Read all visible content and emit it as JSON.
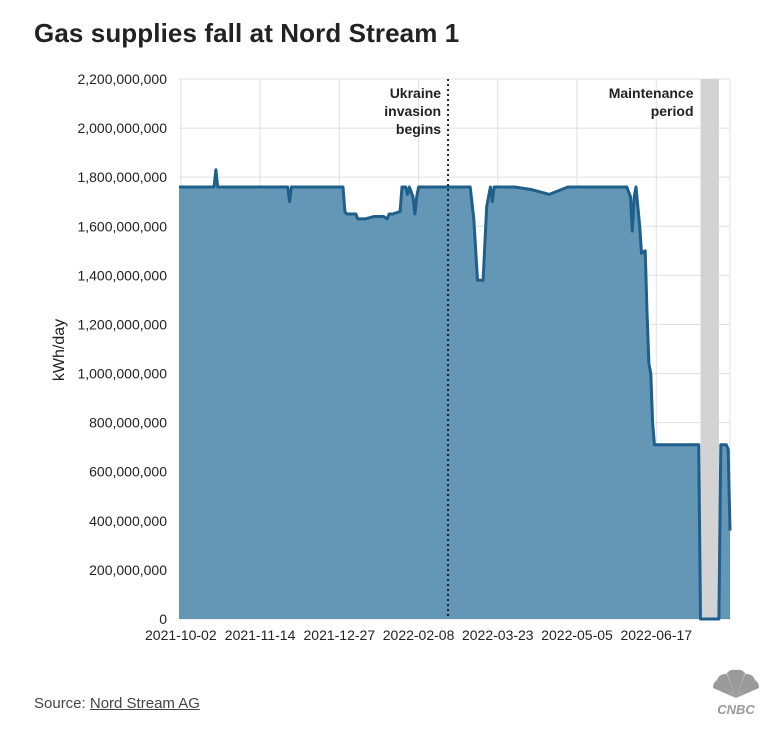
{
  "title": "Gas supplies fall at Nord Stream 1",
  "source": {
    "prefix": "Source: ",
    "link_text": "Nord Stream AG"
  },
  "logo_text": "CNBC",
  "chart_data": {
    "type": "area",
    "ylabel": "kWh/day",
    "ylim": [
      0,
      2200000000
    ],
    "y_ticks": [
      0,
      200000000,
      400000000,
      600000000,
      800000000,
      1000000000,
      1200000000,
      1400000000,
      1600000000,
      1800000000,
      2000000000,
      2200000000
    ],
    "y_tick_labels": [
      "0",
      "200,000,000",
      "400,000,000",
      "600,000,000",
      "800,000,000",
      "1,000,000,000",
      "1,200,000,000",
      "1,400,000,000",
      "1,600,000,000",
      "1,800,000,000",
      "2,000,000,000",
      "2,200,000,000"
    ],
    "xlim": [
      "2021-10-01",
      "2022-07-27"
    ],
    "x_tick_labels": [
      "2021-10-02",
      "2021-11-14",
      "2021-12-27",
      "2022-02-08",
      "2022-03-23",
      "2022-05-05",
      "2022-06-17"
    ],
    "grid": true,
    "series": [
      {
        "x": [
          "2021-10-01",
          "2021-10-10",
          "2021-10-20",
          "2021-10-21",
          "2021-10-22",
          "2021-11-01",
          "2021-11-10",
          "2021-11-20",
          "2021-11-29",
          "2021-11-30",
          "2021-12-01",
          "2021-12-10",
          "2021-12-20",
          "2021-12-29",
          "2021-12-30",
          "2021-12-31",
          "2022-01-05",
          "2022-01-06",
          "2022-01-07",
          "2022-01-10",
          "2022-01-15",
          "2022-01-20",
          "2022-01-22",
          "2022-01-23",
          "2022-01-25",
          "2022-01-29",
          "2022-01-30",
          "2022-02-01",
          "2022-02-02",
          "2022-02-03",
          "2022-02-05",
          "2022-02-06",
          "2022-02-07",
          "2022-02-08",
          "2022-02-10",
          "2022-02-13",
          "2022-02-20",
          "2022-02-24",
          "2022-03-01",
          "2022-03-05",
          "2022-03-08",
          "2022-03-10",
          "2022-03-12",
          "2022-03-15",
          "2022-03-17",
          "2022-03-19",
          "2022-03-20",
          "2022-03-21",
          "2022-03-22",
          "2022-03-23",
          "2022-03-24",
          "2022-04-01",
          "2022-04-10",
          "2022-04-20",
          "2022-04-30",
          "2022-05-01",
          "2022-05-05",
          "2022-05-15",
          "2022-05-25",
          "2022-06-01",
          "2022-06-03",
          "2022-06-04",
          "2022-06-05",
          "2022-06-06",
          "2022-06-08",
          "2022-06-09",
          "2022-06-11",
          "2022-06-12",
          "2022-06-13",
          "2022-06-14",
          "2022-06-15",
          "2022-06-16",
          "2022-06-17",
          "2022-06-18",
          "2022-06-19",
          "2022-06-25",
          "2022-07-01",
          "2022-07-10",
          "2022-07-11",
          "2022-07-21",
          "2022-07-22",
          "2022-07-25",
          "2022-07-26",
          "2022-07-27"
        ],
        "values": [
          1760000000,
          1760000000,
          1760000000,
          1830000000,
          1760000000,
          1760000000,
          1760000000,
          1760000000,
          1760000000,
          1700000000,
          1760000000,
          1760000000,
          1760000000,
          1760000000,
          1660000000,
          1650000000,
          1650000000,
          1630000000,
          1630000000,
          1630000000,
          1640000000,
          1640000000,
          1630000000,
          1650000000,
          1650000000,
          1660000000,
          1760000000,
          1760000000,
          1730000000,
          1760000000,
          1720000000,
          1650000000,
          1720000000,
          1760000000,
          1760000000,
          1760000000,
          1760000000,
          1760000000,
          1760000000,
          1760000000,
          1760000000,
          1630000000,
          1380000000,
          1380000000,
          1680000000,
          1760000000,
          1700000000,
          1760000000,
          1760000000,
          1760000000,
          1760000000,
          1760000000,
          1750000000,
          1730000000,
          1760000000,
          1760000000,
          1760000000,
          1760000000,
          1760000000,
          1760000000,
          1720000000,
          1580000000,
          1720000000,
          1760000000,
          1600000000,
          1490000000,
          1500000000,
          1240000000,
          1040000000,
          1000000000,
          800000000,
          710000000,
          710000000,
          710000000,
          710000000,
          710000000,
          710000000,
          710000000,
          0,
          0,
          710000000,
          710000000,
          690000000,
          360000000
        ]
      }
    ],
    "annotations": [
      {
        "x": "2022-02-24",
        "text": [
          "Ukraine",
          "invasion",
          "begins"
        ],
        "style": "dotted-line"
      },
      {
        "x_start": "2022-07-11",
        "x_end": "2022-07-21",
        "text": [
          "Maintenance",
          "period"
        ],
        "style": "shaded-band"
      }
    ],
    "colors": {
      "line": "#1f5f8b",
      "fill": "#6497b6",
      "band": "#d3d3d3",
      "grid": "#e0e0e0"
    }
  }
}
